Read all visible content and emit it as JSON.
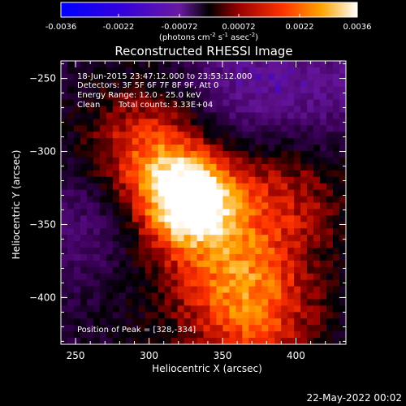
{
  "chart_data": {
    "type": "heatmap",
    "title": "Reconstructed RHESSI Image",
    "xlabel": "Heliocentric X (arcsec)",
    "ylabel": "Heliocentric Y (arcsec)",
    "xlim": [
      240,
      434
    ],
    "ylim": [
      -432,
      -238
    ],
    "x_ticks": [
      250,
      300,
      350,
      400
    ],
    "y_ticks": [
      -250,
      -300,
      -350,
      -400
    ],
    "colorbar": {
      "range": [
        -0.0036,
        0.0036
      ],
      "ticks": [
        "-0.0036",
        "-0.0022",
        "-0.00072",
        "0.00072",
        "0.0022",
        "0.0036"
      ],
      "tick_values": [
        -0.0036,
        -0.0022,
        -0.00072,
        0.00072,
        0.0022,
        0.0036
      ],
      "unit_prefix": "(photons cm",
      "unit_exp1": "-2",
      "unit_mid": " s",
      "unit_exp2": "-1",
      "unit_mid2": " asec",
      "unit_exp3": "-2",
      "unit_suffix": ")"
    },
    "peak": {
      "x": 328,
      "y": -334,
      "value": 0.0036
    },
    "secondary_sources": [
      {
        "x": 300,
        "y": -300,
        "value": 0.002
      },
      {
        "x": 360,
        "y": -385,
        "value": 0.0015
      },
      {
        "x": 395,
        "y": -330,
        "value": 0.0012
      },
      {
        "x": 375,
        "y": -420,
        "value": 0.0016
      }
    ],
    "negative_regions": [
      {
        "x": 360,
        "y": -260,
        "value": -0.0016
      },
      {
        "x": 255,
        "y": -350,
        "value": -0.0014
      },
      {
        "x": 420,
        "y": -255,
        "value": -0.0012
      }
    ],
    "grid": false
  },
  "info": {
    "line1": "18-Jun-2015 23:47:12.000 to 23:53:12.000",
    "line2": "Detectors: 3F 5F 6F 7F 8F 9F, Att 0",
    "line3": "Energy Range: 12.0 - 25.0 keV",
    "line4_a": "Clean",
    "line4_b": "Total counts: 3.33E+04",
    "peak_label": "Position of Peak = [328,-334]"
  },
  "footer": {
    "date": "22-May-2022 00:02"
  },
  "colors": {
    "background": "#000000",
    "text": "#ffffff"
  }
}
